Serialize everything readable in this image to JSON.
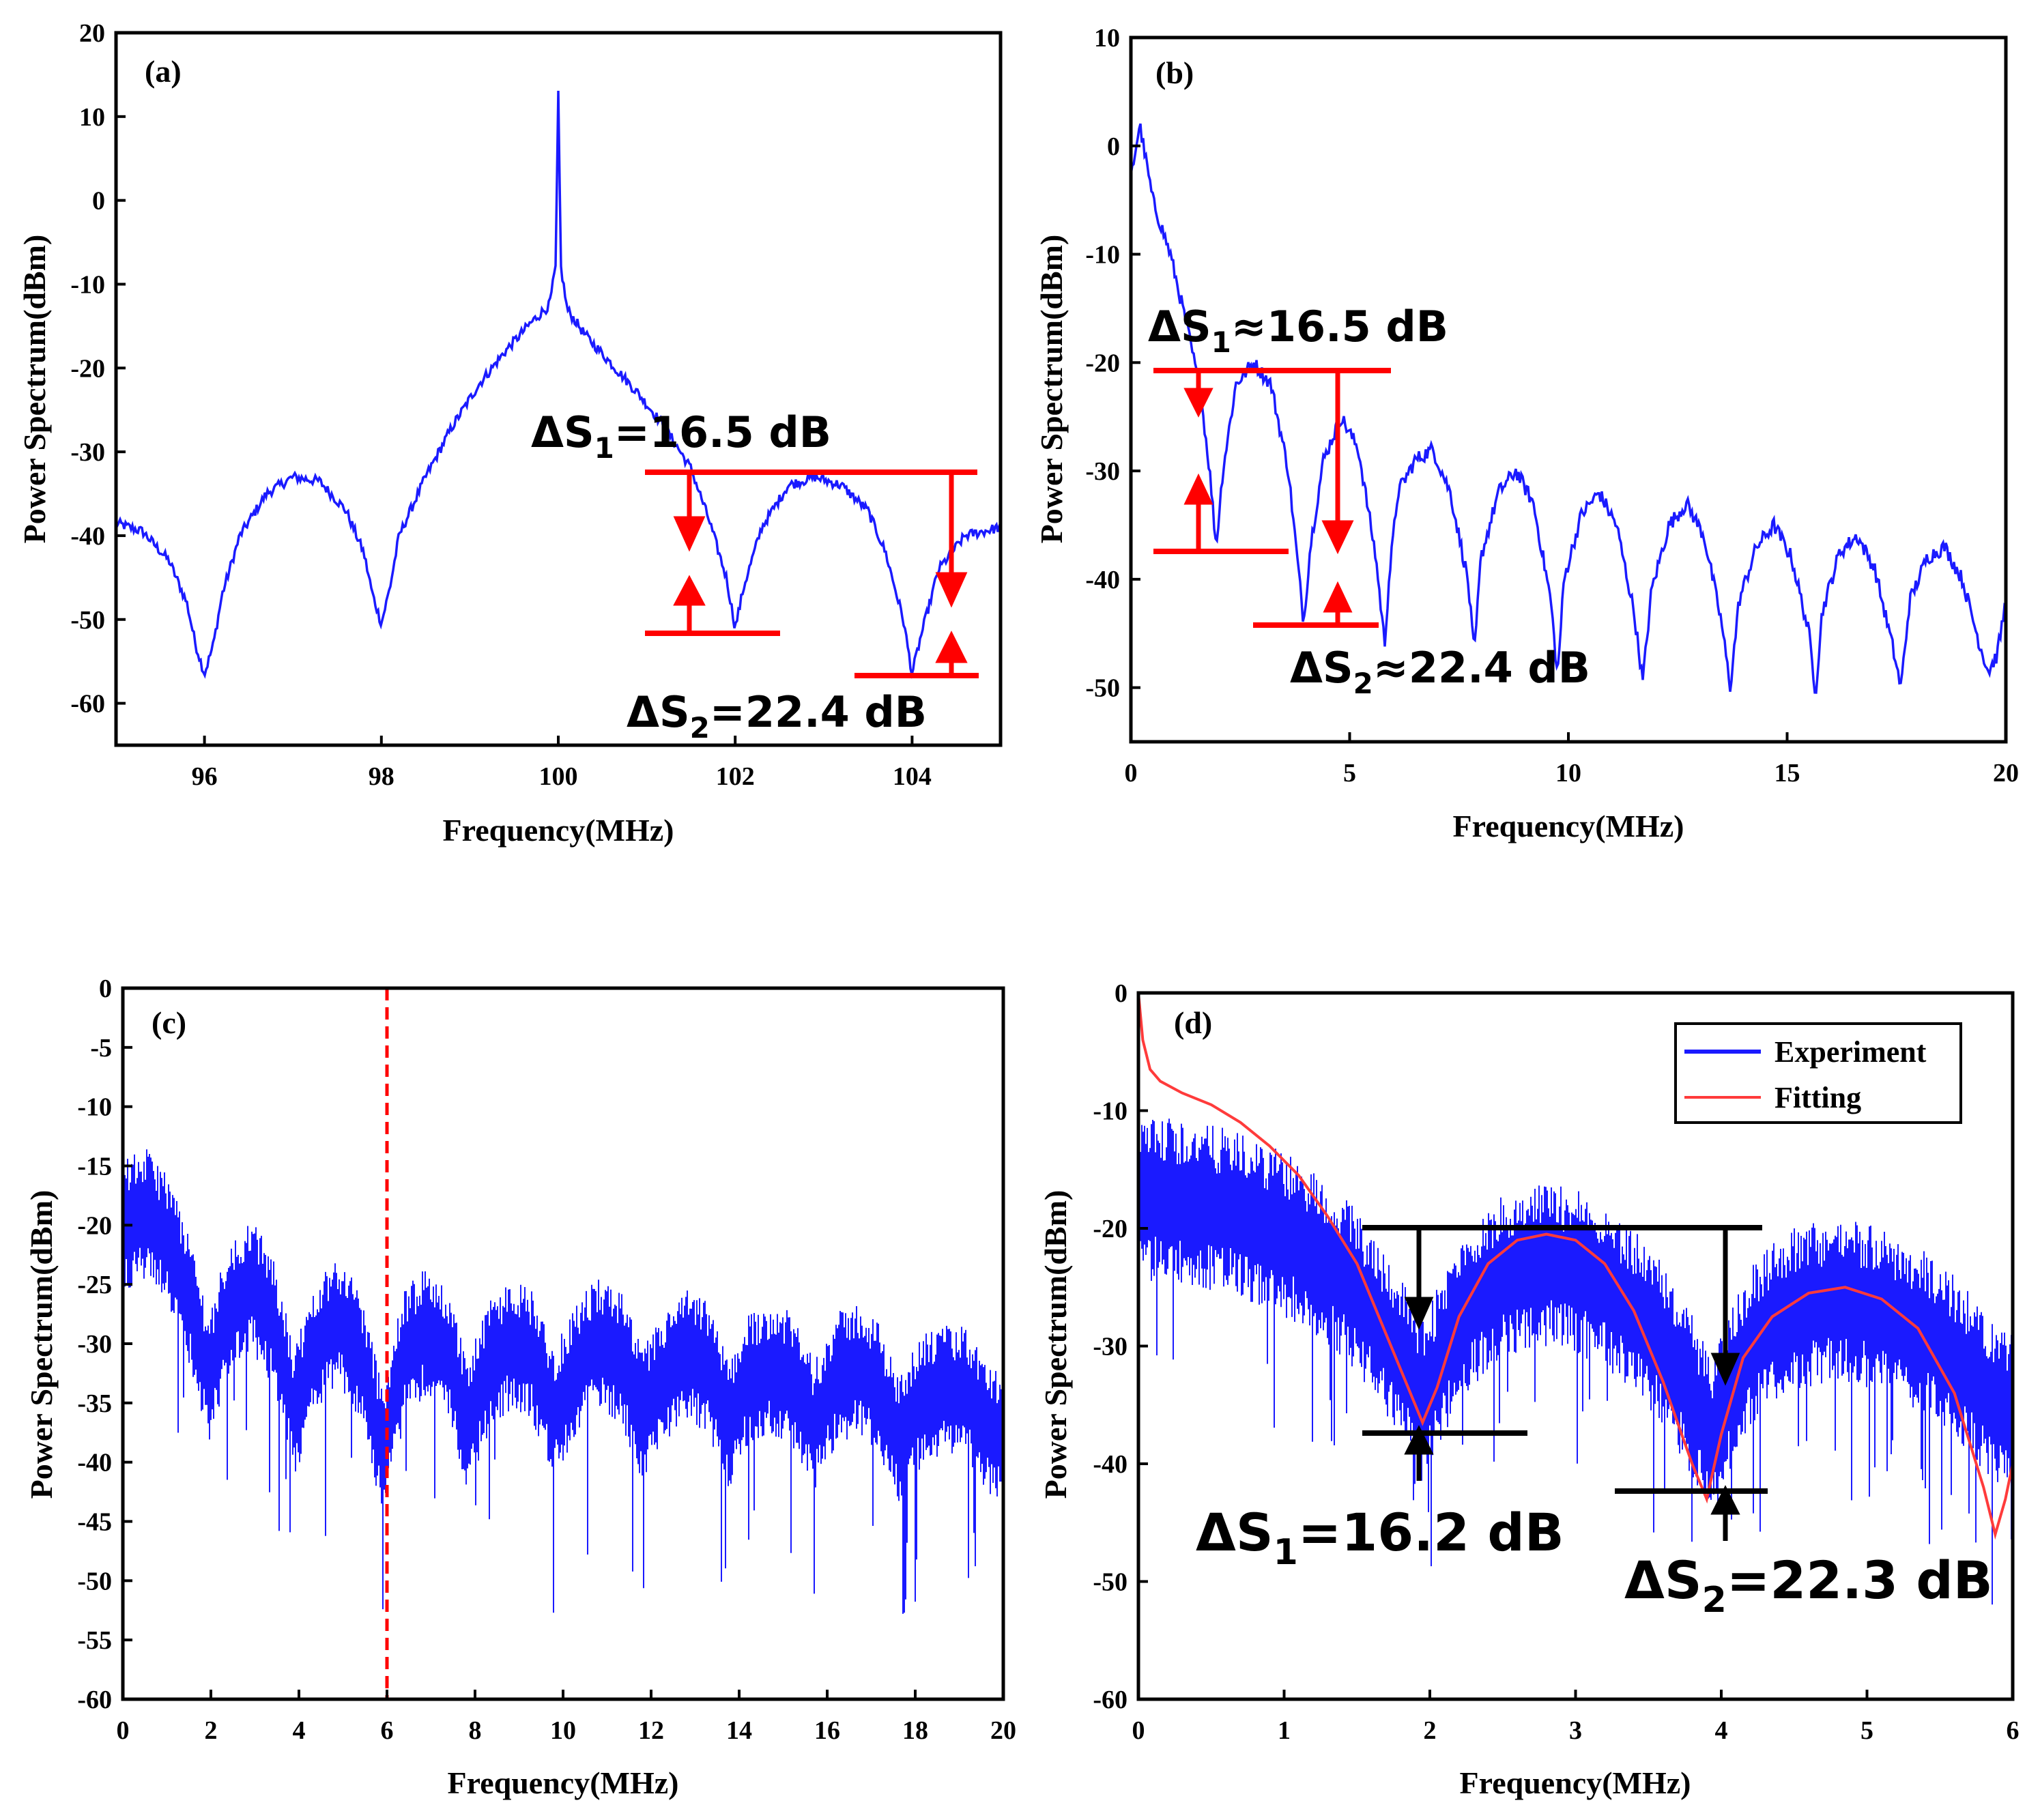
{
  "colors": {
    "experiment": "#1a1aff",
    "fitting": "#ff3b3b",
    "annotation_red": "#ff0000",
    "annotation_black": "#000000"
  },
  "chart_data": [
    {
      "type": "line",
      "panel_label": "(a)",
      "xlabel": "Frequency(MHz)",
      "ylabel": "Power Spectrum(dBm)",
      "xlim": [
        95,
        105
      ],
      "ylim": [
        -65,
        20
      ],
      "xticks": [
        96,
        98,
        100,
        102,
        104
      ],
      "xtick_labels": [
        "96",
        "98",
        "100",
        "102",
        "104"
      ],
      "yticks": [
        -60,
        -50,
        -40,
        -30,
        -20,
        -10,
        0,
        10,
        20
      ],
      "ytick_labels": [
        "-60",
        "-50",
        "-40",
        "-30",
        "-20",
        "-10",
        "0",
        "10",
        "20"
      ],
      "series": [
        {
          "name": "Spectrum",
          "x": [
            95.0,
            95.3,
            95.6,
            95.8,
            95.9,
            96.0,
            96.1,
            96.2,
            96.4,
            96.7,
            97.0,
            97.3,
            97.6,
            97.8,
            97.9,
            98.0,
            98.1,
            98.2,
            98.5,
            98.8,
            99.1,
            99.4,
            99.7,
            99.9,
            99.97,
            100.0,
            100.03,
            100.1,
            100.3,
            100.6,
            100.9,
            101.2,
            101.5,
            101.7,
            101.9,
            102.0,
            102.1,
            102.3,
            102.6,
            102.9,
            103.2,
            103.5,
            103.7,
            103.9,
            104.0,
            104.1,
            104.3,
            104.6,
            104.8,
            105.0
          ],
          "y": [
            -38.5,
            -39.5,
            -43,
            -48,
            -53,
            -56.5,
            -53,
            -47,
            -40,
            -35,
            -33,
            -33.5,
            -37,
            -42,
            -47,
            -50.5,
            -46,
            -40,
            -33,
            -27,
            -22,
            -18,
            -14.5,
            -12.5,
            -8,
            12.5,
            -8,
            -13,
            -16,
            -19.5,
            -23,
            -27,
            -32,
            -38,
            -45,
            -51,
            -46,
            -39,
            -34,
            -33,
            -34,
            -37,
            -42,
            -50,
            -56.5,
            -52,
            -44,
            -40,
            -39.5,
            -39
          ]
        }
      ],
      "annotations": [
        {
          "text_prefix": "ΔS",
          "sub": "1",
          "text_suffix": "=16.5 dB"
        },
        {
          "text_prefix": "ΔS",
          "sub": "2",
          "text_suffix": "=22.4 dB"
        }
      ],
      "ref_levels": {
        "upper": -32.5,
        "lower1": -51.5,
        "lower2": -56.5
      }
    },
    {
      "type": "line",
      "panel_label": "(b)",
      "xlabel": "Frequency(MHz)",
      "ylabel": "Power Spectrum(dBm)",
      "xlim": [
        0,
        20
      ],
      "ylim": [
        -55,
        10
      ],
      "xticks": [
        0,
        5,
        10,
        15,
        20
      ],
      "xtick_labels": [
        "0",
        "5",
        "10",
        "15",
        "20"
      ],
      "yticks": [
        -50,
        -40,
        -30,
        -20,
        -10,
        0,
        10
      ],
      "ytick_labels": [
        "-50",
        "-40",
        "-30",
        "-20",
        "-10",
        "0",
        "10"
      ],
      "series": [
        {
          "name": "Spectrum",
          "x": [
            0.0,
            0.2,
            0.5,
            0.9,
            1.3,
            1.6,
            1.8,
            1.95,
            2.1,
            2.4,
            2.8,
            3.2,
            3.6,
            3.8,
            3.95,
            4.1,
            4.4,
            4.8,
            5.2,
            5.6,
            5.8,
            5.9,
            6.1,
            6.5,
            6.9,
            7.3,
            7.7,
            7.85,
            8.0,
            8.4,
            8.8,
            9.2,
            9.6,
            9.75,
            9.9,
            10.3,
            10.7,
            11.1,
            11.5,
            11.7,
            11.9,
            12.3,
            12.7,
            13.1,
            13.5,
            13.7,
            13.9,
            14.3,
            14.7,
            15.1,
            15.5,
            15.65,
            15.8,
            16.2,
            16.6,
            17.0,
            17.4,
            17.6,
            17.8,
            18.2,
            18.6,
            19.0,
            19.4,
            19.6,
            19.8,
            20.0
          ],
          "y": [
            -3,
            2,
            -5,
            -10,
            -17,
            -23,
            -30,
            -37,
            -30,
            -22,
            -20,
            -22,
            -30,
            -38,
            -44,
            -37,
            -29,
            -25,
            -28,
            -38,
            -46,
            -40,
            -32,
            -29,
            -28,
            -32,
            -40,
            -47,
            -38,
            -32,
            -30,
            -33,
            -42,
            -49,
            -40,
            -34,
            -32,
            -35,
            -43,
            -49.5,
            -41,
            -35,
            -33,
            -36,
            -44,
            -50,
            -42,
            -37,
            -35,
            -38,
            -45,
            -50.5,
            -43,
            -37.5,
            -36,
            -39,
            -46,
            -50,
            -42,
            -38,
            -37,
            -40,
            -46,
            -48.5,
            -47,
            -42
          ]
        }
      ],
      "annotations": [
        {
          "text_prefix": "ΔS",
          "sub": "1",
          "text_suffix": "≈16.5 dB"
        },
        {
          "text_prefix": "ΔS",
          "sub": "2",
          "text_suffix": "≈22.4 dB"
        }
      ],
      "ref_levels": {
        "upper": -20.5,
        "lower1": -37.5,
        "lower2": -44.5
      }
    },
    {
      "type": "line",
      "panel_label": "(c)",
      "xlabel": "Frequency(MHz)",
      "ylabel": "Power Spectrum(dBm)",
      "xlim": [
        0,
        20
      ],
      "ylim": [
        -60,
        0
      ],
      "xticks": [
        0,
        2,
        4,
        6,
        8,
        10,
        12,
        14,
        16,
        18,
        20
      ],
      "xtick_labels": [
        "0",
        "2",
        "4",
        "6",
        "8",
        "10",
        "12",
        "14",
        "16",
        "18",
        "20"
      ],
      "yticks": [
        -60,
        -55,
        -50,
        -45,
        -40,
        -35,
        -30,
        -25,
        -20,
        -15,
        -10,
        -5,
        0
      ],
      "ytick_labels": [
        "-60",
        "-55",
        "-50",
        "-45",
        "-40",
        "-35",
        "-30",
        "-25",
        "-20",
        "-15",
        "-10",
        "-5",
        "0"
      ],
      "series": [
        {
          "name": "Spectrum",
          "x": [
            0.0,
            0.5,
            1.0,
            1.5,
            1.95,
            2.4,
            2.9,
            3.4,
            3.9,
            4.4,
            4.9,
            5.4,
            5.9,
            6.4,
            6.9,
            7.4,
            7.85,
            8.3,
            8.8,
            9.3,
            9.8,
            10.3,
            10.8,
            11.3,
            11.8,
            12.3,
            12.8,
            13.3,
            13.75,
            14.2,
            14.7,
            15.2,
            15.7,
            16.2,
            16.7,
            17.2,
            17.6,
            18.1,
            18.6,
            19.1,
            19.6,
            20.0
          ],
          "y": [
            -20,
            -19,
            -21,
            -26,
            -33,
            -27,
            -25,
            -28,
            -36,
            -30,
            -28,
            -31,
            -39,
            -31,
            -29,
            -31,
            -37,
            -32,
            -30,
            -31,
            -36,
            -32,
            -30,
            -31,
            -36,
            -33,
            -31,
            -32,
            -37,
            -33,
            -32,
            -33,
            -37,
            -33,
            -32,
            -34,
            -38,
            -35,
            -34,
            -34,
            -37,
            -38
          ]
        }
      ],
      "band_half_width": 4,
      "marker_x": 6
    },
    {
      "type": "line",
      "panel_label": "(d)",
      "xlabel": "Frequency(MHz)",
      "ylabel": "Power Spectrum(dBm)",
      "xlim": [
        0,
        6
      ],
      "ylim": [
        -60,
        0
      ],
      "xticks": [
        0,
        1,
        2,
        3,
        4,
        5,
        6
      ],
      "xtick_labels": [
        "0",
        "1",
        "2",
        "3",
        "4",
        "5",
        "6"
      ],
      "yticks": [
        -60,
        -50,
        -40,
        -30,
        -20,
        -10,
        0
      ],
      "ytick_labels": [
        "-60",
        "-50",
        "-40",
        "-30",
        "-20",
        "-10",
        "0"
      ],
      "legend": [
        "Experiment",
        "Fitting"
      ],
      "legend_position": "top-right",
      "series": [
        {
          "name": "Experiment",
          "x": [
            0.0,
            0.2,
            0.4,
            0.6,
            0.8,
            1.0,
            1.2,
            1.4,
            1.6,
            1.75,
            1.9,
            1.95,
            2.05,
            2.2,
            2.4,
            2.6,
            2.8,
            3.0,
            3.2,
            3.4,
            3.6,
            3.75,
            3.9,
            3.95,
            4.05,
            4.2,
            4.4,
            4.6,
            4.8,
            5.0,
            5.2,
            5.4,
            5.6,
            5.75,
            5.9,
            6.0
          ],
          "y": [
            -18,
            -17.5,
            -18,
            -18.5,
            -19.5,
            -20.5,
            -22,
            -24,
            -27,
            -30,
            -33,
            -35,
            -32,
            -28,
            -25,
            -23.5,
            -23,
            -23.5,
            -25,
            -27,
            -30,
            -33,
            -37,
            -38,
            -34,
            -30,
            -27.5,
            -26.5,
            -26,
            -26.5,
            -27.5,
            -29,
            -31,
            -33,
            -35,
            -36
          ]
        },
        {
          "name": "Fitting",
          "x": [
            0.0,
            0.03,
            0.08,
            0.15,
            0.3,
            0.5,
            0.7,
            0.9,
            1.1,
            1.3,
            1.5,
            1.7,
            1.85,
            1.95,
            2.05,
            2.2,
            2.4,
            2.6,
            2.8,
            3.0,
            3.2,
            3.4,
            3.6,
            3.8,
            3.9,
            4.0,
            4.15,
            4.35,
            4.6,
            4.85,
            5.1,
            5.35,
            5.6,
            5.8,
            5.88,
            5.95,
            6.0
          ],
          "y": [
            0,
            -4,
            -6.5,
            -7.5,
            -8.5,
            -9.5,
            -11,
            -13,
            -15.5,
            -19,
            -23,
            -29,
            -33.5,
            -36.5,
            -33.5,
            -27.5,
            -23,
            -21,
            -20.5,
            -21,
            -23,
            -27,
            -33,
            -40,
            -43,
            -37.5,
            -31,
            -27.5,
            -25.5,
            -25,
            -26,
            -28.5,
            -34,
            -42,
            -46,
            -43,
            -40
          ]
        }
      ],
      "band_half_width": 5,
      "annotations": [
        {
          "text_prefix": "ΔS",
          "sub": "1",
          "text_suffix": "=16.2 dB"
        },
        {
          "text_prefix": "ΔS",
          "sub": "2",
          "text_suffix": "=22.3 dB"
        }
      ],
      "ref_levels": {
        "upper": -20,
        "lower1": -37,
        "lower2": -42.5
      }
    }
  ]
}
